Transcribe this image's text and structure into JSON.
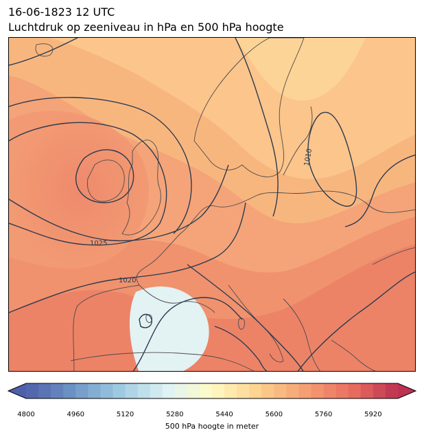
{
  "title": {
    "line1": "16-06-1823 12 UTC",
    "line2": "Luchtdruk op zeeniveau in hPa en 500 hPa hoogte"
  },
  "map": {
    "contour_color": "#2b3a4f",
    "coastline_color": "#4a4a4a",
    "isobar_labels": [
      "1025",
      "1020",
      "1010"
    ]
  },
  "colorbar": {
    "label": "500 hPa hoogte in meter",
    "ticks": [
      "4800",
      "4960",
      "5120",
      "5280",
      "5440",
      "5600",
      "5760",
      "5920"
    ],
    "min": 4800,
    "max": 6000,
    "step": 40,
    "extend": "both",
    "colormap": "RdYlBu_r"
  }
}
